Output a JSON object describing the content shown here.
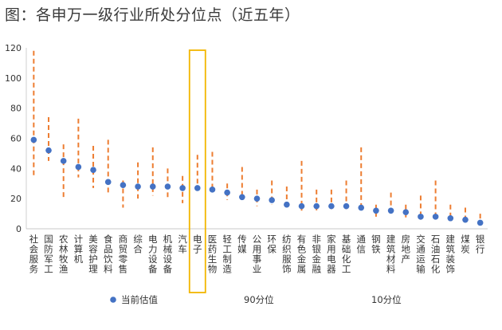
{
  "title": "图：各申万一级行业所处分位点（近五年）",
  "chart_data": {
    "type": "scatter",
    "ylim": [
      0,
      120
    ],
    "yticks": [
      0,
      20,
      40,
      60,
      80,
      100,
      120
    ],
    "highlight_category": "电子",
    "categories": [
      "社会服务",
      "国防军工",
      "农林牧渔",
      "计算机",
      "美容护理",
      "食品饮料",
      "商贸零售",
      "综合",
      "电力设备",
      "机械设备",
      "汽车",
      "电子",
      "医药生物",
      "轻工制造",
      "传媒",
      "公用事业",
      "环保",
      "纺织服饰",
      "有色金属",
      "非银金融",
      "家用电器",
      "基础化工",
      "通信",
      "钢铁",
      "建筑材料",
      "房地产",
      "交通运输",
      "石油石化",
      "建筑装饰",
      "煤炭",
      "银行"
    ],
    "series": [
      {
        "name": "当前估值",
        "color": "#4472C4",
        "values": [
          59,
          52,
          45,
          41,
          39,
          31,
          29,
          28,
          28,
          28,
          27,
          27,
          26,
          24,
          21,
          20,
          19,
          16,
          15,
          15,
          15,
          15,
          14,
          12,
          12,
          11,
          8,
          8,
          7,
          6,
          4
        ]
      },
      {
        "name": "90分位",
        "color": "#ED7D31",
        "values": [
          118,
          74,
          56,
          73,
          55,
          59,
          32,
          44,
          54,
          40,
          35,
          49,
          51,
          30,
          41,
          26,
          32,
          28,
          45,
          26,
          26,
          32,
          54,
          16,
          24,
          16,
          22,
          32,
          16,
          14,
          10
        ]
      },
      {
        "name": "10分位",
        "color": "#ED7D31",
        "values": [
          35,
          45,
          19,
          34,
          27,
          24,
          14,
          20,
          22,
          21,
          17,
          26,
          25,
          19,
          19,
          15,
          16,
          13,
          12,
          12,
          13,
          13,
          13,
          8,
          10,
          7,
          6,
          7,
          5,
          4,
          3
        ]
      }
    ]
  }
}
